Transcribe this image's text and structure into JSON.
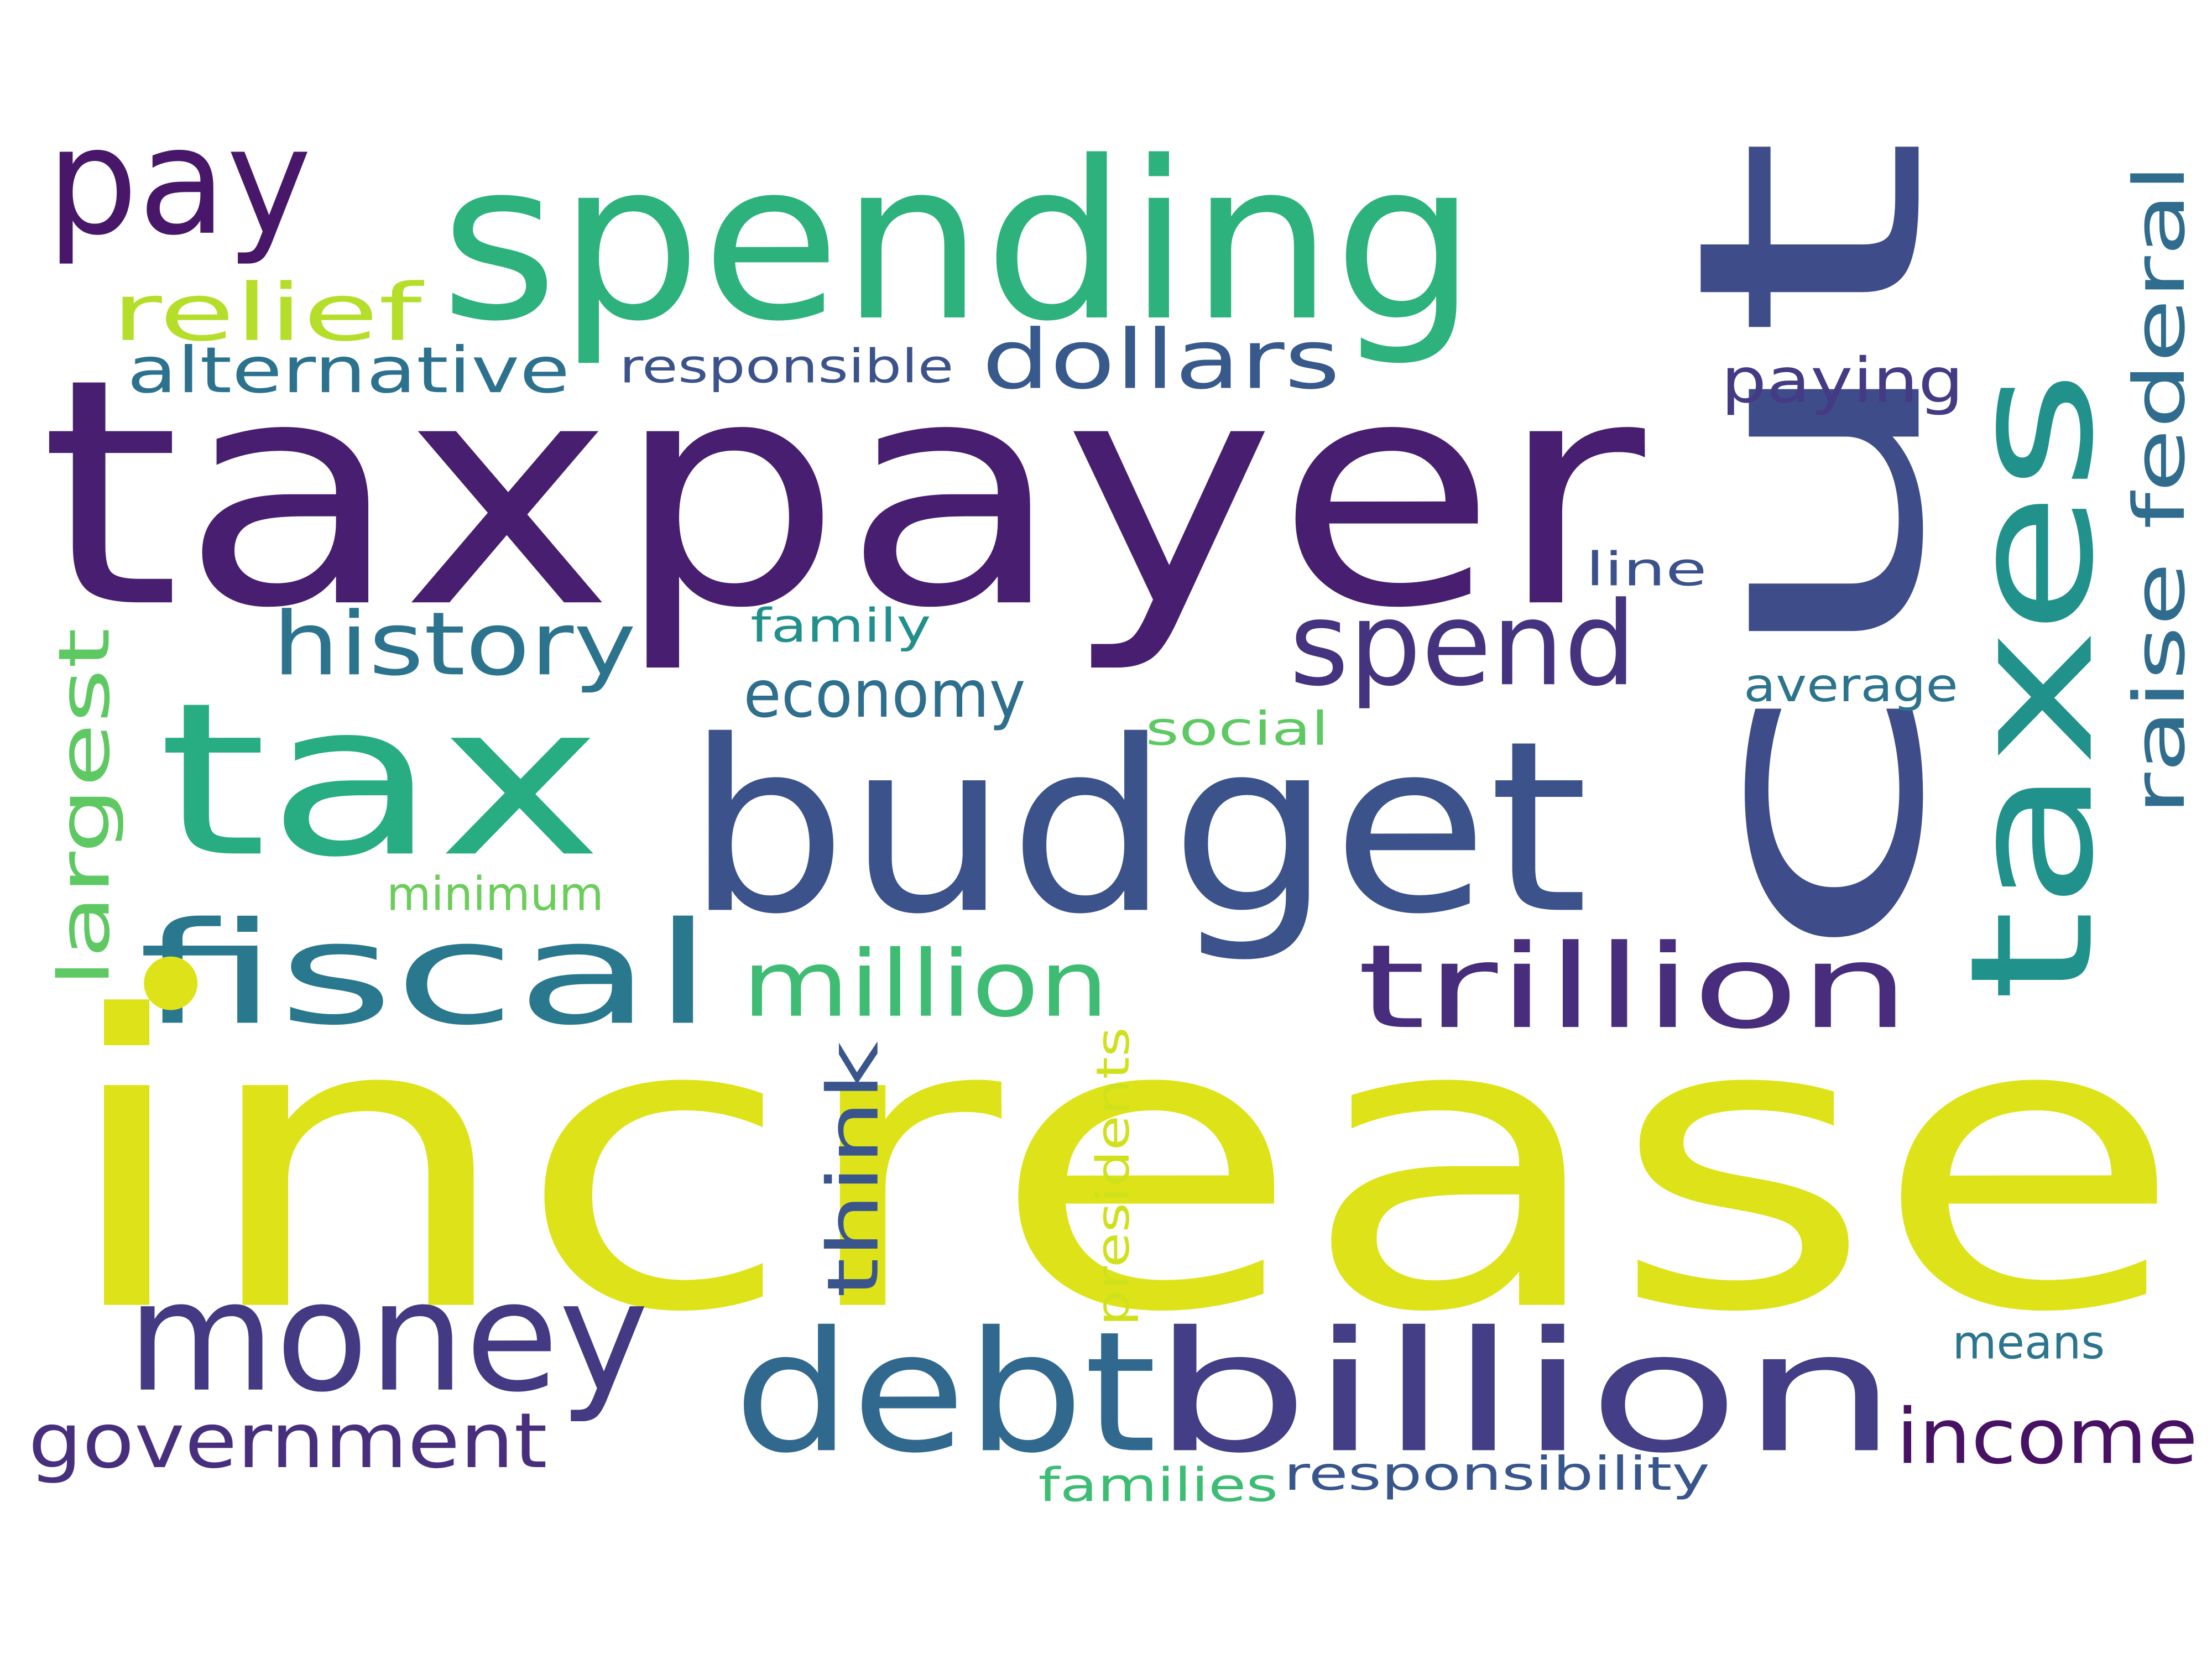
{
  "words": [
    {
      "text": "increase",
      "color": "#dde318"
    },
    {
      "text": "taxpayer",
      "color": "#481f70"
    },
    {
      "text": "cut",
      "color": "#3e4c8a"
    },
    {
      "text": "spending",
      "color": "#2db27d"
    },
    {
      "text": "budget",
      "color": "#3b528b"
    },
    {
      "text": "tax",
      "color": "#27ad81"
    },
    {
      "text": "taxes",
      "color": "#21918c"
    },
    {
      "text": "pay",
      "color": "#481769"
    },
    {
      "text": "debt",
      "color": "#31688e"
    },
    {
      "text": "billion",
      "color": "#433e85"
    },
    {
      "text": "money",
      "color": "#443983"
    },
    {
      "text": "fiscal",
      "color": "#2a788e"
    },
    {
      "text": "trillion",
      "color": "#472d7b"
    },
    {
      "text": "spend",
      "color": "#46337f"
    },
    {
      "text": "million",
      "color": "#3fbc73"
    },
    {
      "text": "history",
      "color": "#2c738e"
    },
    {
      "text": "dollars",
      "color": "#38598c"
    },
    {
      "text": "relief",
      "color": "#b5de2b"
    },
    {
      "text": "government",
      "color": "#472f7d"
    },
    {
      "text": "income",
      "color": "#471164"
    },
    {
      "text": "raise federal",
      "color": "#2f6c8e"
    },
    {
      "text": "economy",
      "color": "#2e6f8e"
    },
    {
      "text": "alternative",
      "color": "#2c728e"
    },
    {
      "text": "paying",
      "color": "#443b84"
    },
    {
      "text": "largest",
      "color": "#5ec962"
    },
    {
      "text": "think",
      "color": "#3a548c"
    },
    {
      "text": "responsible",
      "color": "#3b528b"
    },
    {
      "text": "family",
      "color": "#21908d"
    },
    {
      "text": "social",
      "color": "#5ec962"
    },
    {
      "text": "average",
      "color": "#2c738e"
    },
    {
      "text": "line",
      "color": "#3b518b"
    },
    {
      "text": "minimum",
      "color": "#6ccd5a"
    },
    {
      "text": "presidents",
      "color": "#d0e11c"
    },
    {
      "text": "means",
      "color": "#2b758e"
    },
    {
      "text": "responsibility",
      "color": "#39568c"
    },
    {
      "text": "families",
      "color": "#3dbc74"
    }
  ]
}
